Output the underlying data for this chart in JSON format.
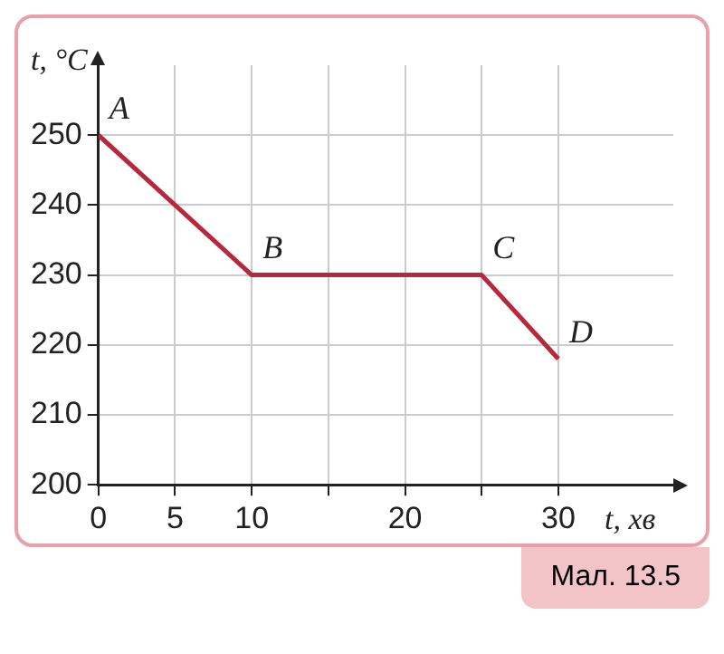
{
  "chart_data": {
    "type": "line",
    "xlabel": "t, хв",
    "ylabel": "t, °C",
    "x": [
      0,
      10,
      25,
      30
    ],
    "series": [
      {
        "color": "#b8283c",
        "values": [
          250,
          230,
          230,
          218
        ]
      }
    ],
    "xlim": [
      0,
      37.5
    ],
    "ylim": [
      200,
      260
    ],
    "xticks": [
      0,
      5,
      10,
      {
        "value": 15,
        "label": null
      },
      20,
      {
        "value": 25,
        "label": null
      },
      30
    ],
    "yticks": [
      200,
      210,
      220,
      230,
      240,
      250
    ],
    "grid": true,
    "legend": false,
    "marker": "none",
    "line_style": "solid",
    "annotations": [
      {
        "text": "A",
        "x": 0,
        "y": 250
      },
      {
        "text": "B",
        "x": 10,
        "y": 230
      },
      {
        "text": "C",
        "x": 25,
        "y": 230
      },
      {
        "text": "D",
        "x": 30,
        "y": 218
      },
      "Мал. 13.5"
    ]
  }
}
